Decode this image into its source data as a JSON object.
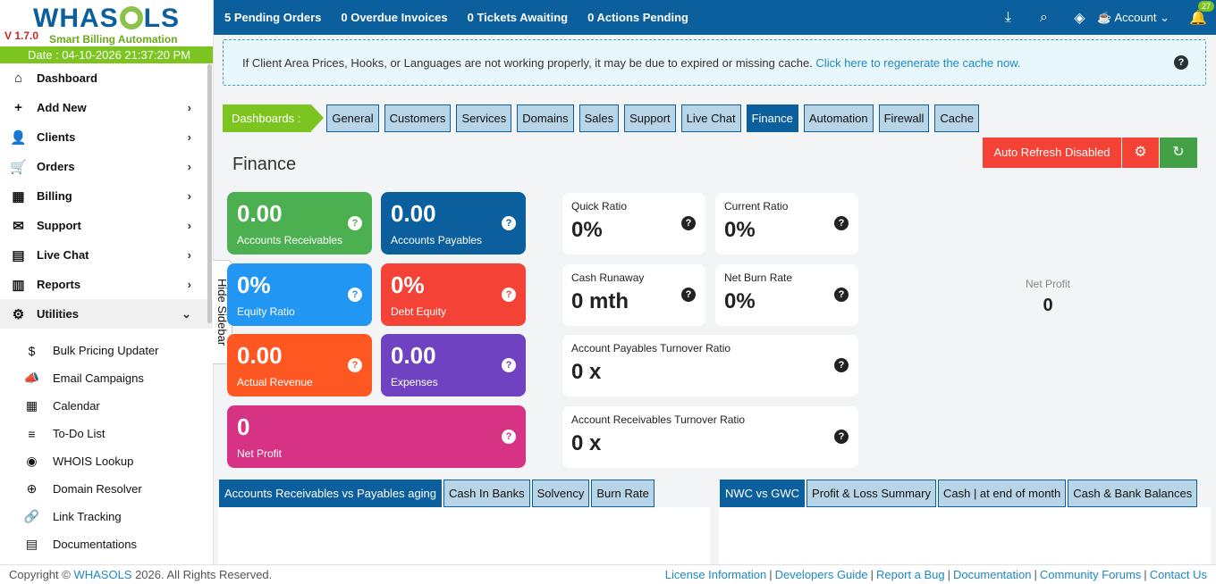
{
  "brand": {
    "logo_left": "WHAS",
    "logo_right": "LS",
    "version": "V 1.7.0",
    "tagline": "Smart Billing Automation",
    "date": "Date : 04-10-2026 21:37:20 PM"
  },
  "sidebar": {
    "items": [
      {
        "label": "Dashboard",
        "icon": "home-icon",
        "chev": false
      },
      {
        "label": "Add New",
        "icon": "plus-icon",
        "chev": true
      },
      {
        "label": "Clients",
        "icon": "user-icon",
        "chev": true
      },
      {
        "label": "Orders",
        "icon": "cart-icon",
        "chev": true
      },
      {
        "label": "Billing",
        "icon": "calendar-icon",
        "chev": true
      },
      {
        "label": "Support",
        "icon": "mail-icon",
        "chev": true
      },
      {
        "label": "Live Chat",
        "icon": "chat-icon",
        "chev": true
      },
      {
        "label": "Reports",
        "icon": "report-icon",
        "chev": true
      },
      {
        "label": "Utilities",
        "icon": "tools-icon",
        "chev": true
      }
    ],
    "sub_items": [
      {
        "label": "Bulk Pricing Updater",
        "icon": "dollar-icon"
      },
      {
        "label": "Email Campaigns",
        "icon": "megaphone-icon"
      },
      {
        "label": "Calendar",
        "icon": "calendar-icon"
      },
      {
        "label": "To-Do List",
        "icon": "todo-icon"
      },
      {
        "label": "WHOIS Lookup",
        "icon": "globe-icon"
      },
      {
        "label": "Domain Resolver",
        "icon": "network-icon"
      },
      {
        "label": "Link Tracking",
        "icon": "link-icon"
      },
      {
        "label": "Documentations",
        "icon": "document-icon"
      }
    ],
    "hide_label": "Hide Sidebar"
  },
  "topbar": {
    "stats": [
      "5 Pending Orders",
      "0 Overdue Invoices",
      "0 Tickets Awaiting",
      "0 Actions Pending"
    ],
    "account": "Account",
    "notifications": "27"
  },
  "notice": {
    "text": "If Client Area Prices, Hooks, or Languages are not working properly, it may be due to expired or missing cache. ",
    "link": "Click here to regenerate the cache now."
  },
  "dashboards": {
    "label": "Dashboards :",
    "tabs": [
      "General",
      "Customers",
      "Services",
      "Domains",
      "Sales",
      "Support",
      "Live Chat",
      "Finance",
      "Automation",
      "Firewall",
      "Cache"
    ],
    "active": "Finance"
  },
  "buttons": {
    "auto_refresh": "Auto Refresh Disabled"
  },
  "page_title": "Finance",
  "cards": [
    {
      "value": "0.00",
      "label": "Accounts Receivables",
      "color": "#4caf50"
    },
    {
      "value": "0.00",
      "label": "Accounts Payables",
      "color": "#0a5f9c"
    },
    {
      "value": "0%",
      "label": "Equity Ratio",
      "color": "#2196f3"
    },
    {
      "value": "0%",
      "label": "Debt Equity",
      "color": "#f44336"
    },
    {
      "value": "0.00",
      "label": "Actual Revenue",
      "color": "#ff5722"
    },
    {
      "value": "0.00",
      "label": "Expenses",
      "color": "#6f42c1"
    },
    {
      "value": "0",
      "label": "Net Profit",
      "color": "#d63384"
    }
  ],
  "ratios": [
    {
      "label": "Quick Ratio",
      "value": "0%"
    },
    {
      "label": "Current Ratio",
      "value": "0%"
    },
    {
      "label": "Cash Runaway",
      "value": "0 mth"
    },
    {
      "label": "Net Burn Rate",
      "value": "0%"
    },
    {
      "label": "Account Payables Turnover Ratio",
      "value": "0 x"
    },
    {
      "label": "Account Receivables Turnover Ratio",
      "value": "0 x"
    }
  ],
  "net_profit": {
    "label": "Net Profit",
    "value": "0"
  },
  "bottom_tabs_left": {
    "tabs": [
      "Accounts Receivables vs Payables aging",
      "Cash In Banks",
      "Solvency",
      "Burn Rate"
    ]
  },
  "bottom_tabs_right": {
    "tabs": [
      "NWC vs GWC",
      "Profit & Loss Summary",
      "Cash | at end of month",
      "Cash & Bank Balances"
    ]
  },
  "footer": {
    "copy_prefix": "Copyright © ",
    "brand": "WHASOLS",
    "copy_suffix": " 2026. All Rights Reserved.",
    "links": [
      "License Information",
      "Developers Guide",
      "Report a Bug",
      "Documentation",
      "Community Forums",
      "Contact Us"
    ]
  }
}
